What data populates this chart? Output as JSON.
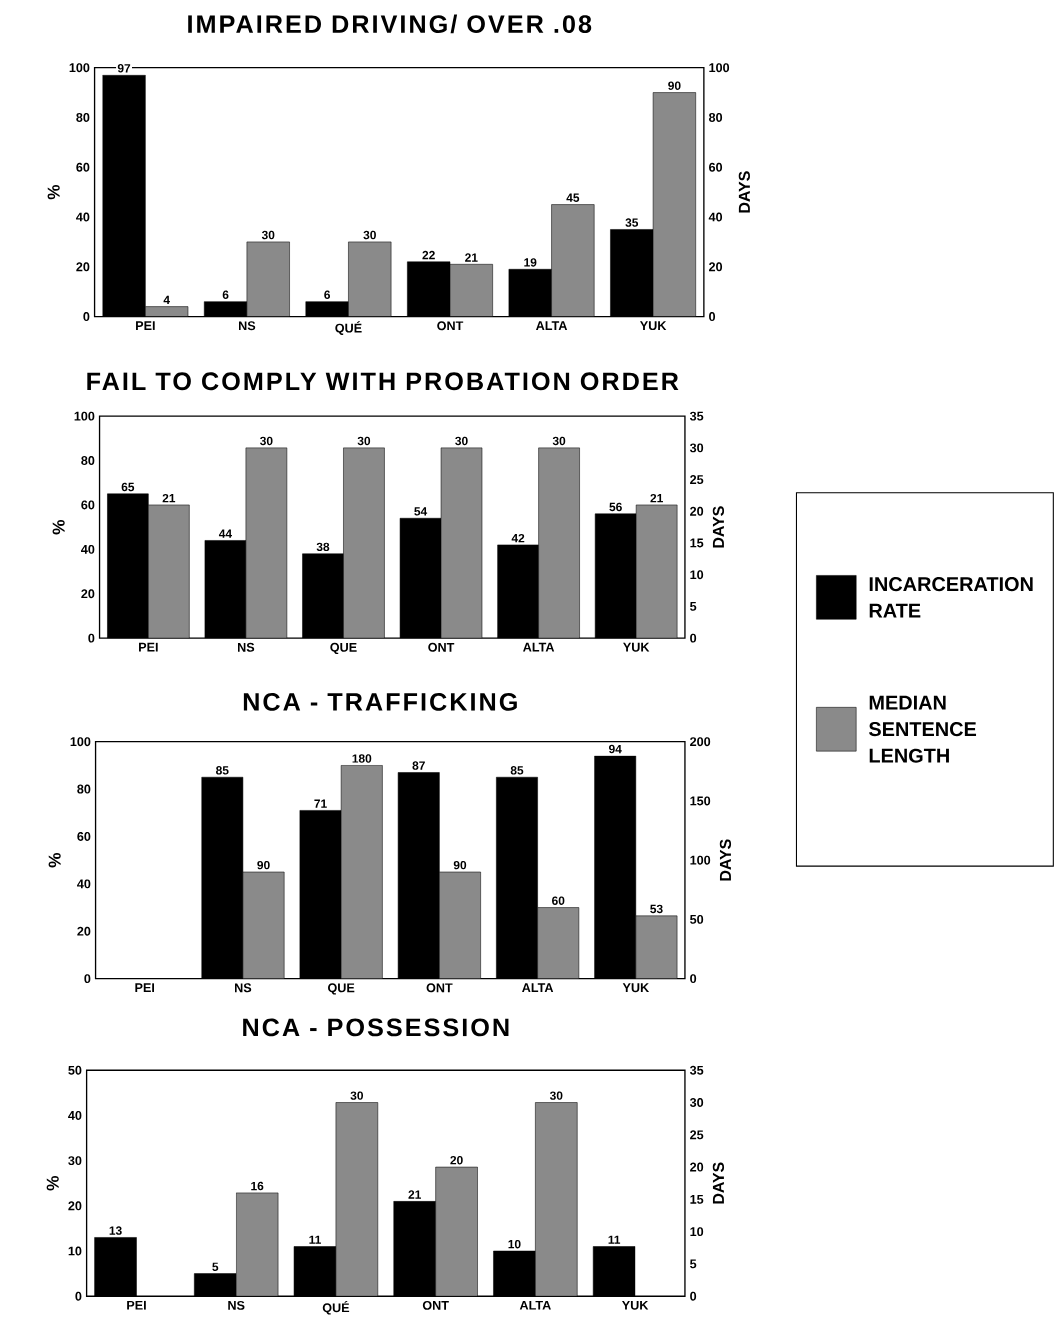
{
  "chart_data": [
    {
      "type": "bar",
      "title": "IMPAIRED DRIVING/ OVER .08",
      "ylabel": "%",
      "y2label": "DAYS",
      "categories": [
        "PEI",
        "NS",
        "QUÉ",
        "ONT",
        "ALTA",
        "YUK"
      ],
      "ylim": [
        0,
        100
      ],
      "yticks": [
        0,
        20,
        40,
        60,
        80,
        100
      ],
      "y2lim": [
        0,
        100
      ],
      "y2ticks": [
        0,
        20,
        40,
        60,
        80,
        100
      ],
      "data_labels": true,
      "series": [
        {
          "color": "#000000",
          "values": [
            97,
            6,
            6,
            22,
            19,
            35
          ]
        },
        {
          "color": "#8a8a8a",
          "axis": "y2",
          "values": [
            4,
            30,
            30,
            21,
            45,
            90
          ]
        }
      ]
    },
    {
      "type": "bar",
      "title": "FAIL TO COMPLY WITH PROBATION ORDER",
      "ylabel": "%",
      "y2label": "DAYS",
      "categories": [
        "PEI",
        "NS",
        "QUE",
        "ONT",
        "ALTA",
        "YUK"
      ],
      "ylim": [
        0,
        100
      ],
      "yticks": [
        0,
        20,
        40,
        60,
        80,
        100
      ],
      "y2lim": [
        0,
        35
      ],
      "y2ticks": [
        0,
        5,
        10,
        15,
        20,
        25,
        30,
        35
      ],
      "data_labels": true,
      "legend": "right",
      "series": [
        {
          "name": "INCARCERATION RATE",
          "color": "#000000",
          "values": [
            65,
            44,
            38,
            54,
            42,
            56
          ]
        },
        {
          "name": "MEDIAN SENTENCE LENGTH",
          "color": "#8a8a8a",
          "axis": "y2",
          "values": [
            21,
            30,
            30,
            30,
            30,
            21
          ]
        }
      ]
    },
    {
      "type": "bar",
      "title": "NCA - TRAFFICKING",
      "ylabel": "%",
      "y2label": "DAYS",
      "categories": [
        "PEI",
        "NS",
        "QUE",
        "ONT",
        "ALTA",
        "YUK"
      ],
      "ylim": [
        0,
        100
      ],
      "yticks": [
        0,
        20,
        40,
        60,
        80,
        100
      ],
      "y2lim": [
        0,
        200
      ],
      "y2ticks": [
        0,
        50,
        100,
        150,
        200
      ],
      "data_labels": true,
      "series": [
        {
          "color": "#000000",
          "values": [
            null,
            85,
            71,
            87,
            85,
            94
          ]
        },
        {
          "color": "#8a8a8a",
          "axis": "y2",
          "values": [
            null,
            90,
            180,
            90,
            60,
            53
          ]
        }
      ]
    },
    {
      "type": "bar",
      "title": "NCA - POSSESSION",
      "ylabel": "%",
      "y2label": "DAYS",
      "categories": [
        "PEI",
        "NS",
        "QUÉ",
        "ONT",
        "ALTA",
        "YUK"
      ],
      "ylim": [
        0,
        50
      ],
      "yticks": [
        0,
        10,
        20,
        30,
        40,
        50
      ],
      "y2lim": [
        0,
        35
      ],
      "y2ticks": [
        0,
        5,
        10,
        15,
        20,
        25,
        30,
        35
      ],
      "data_labels": true,
      "series": [
        {
          "color": "#000000",
          "values": [
            13,
            5,
            11,
            21,
            10,
            11
          ]
        },
        {
          "color": "#8a8a8a",
          "axis": "y2",
          "values": [
            null,
            16,
            30,
            20,
            30,
            null
          ]
        }
      ]
    }
  ]
}
